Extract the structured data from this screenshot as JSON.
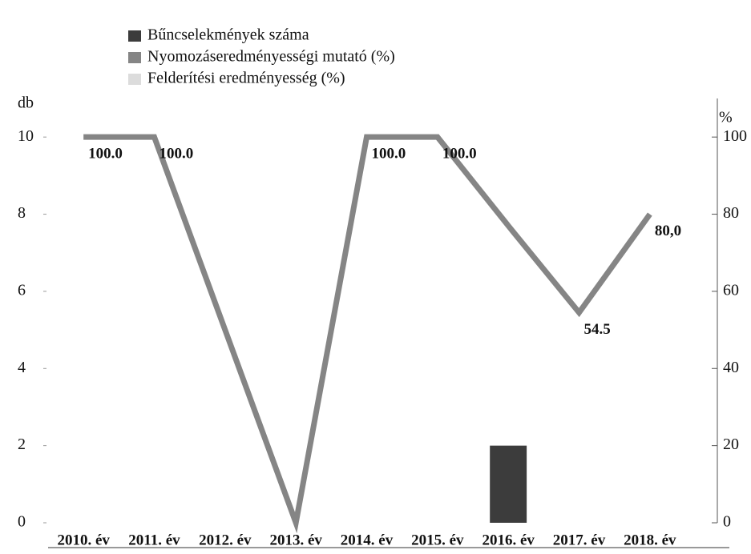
{
  "chart_data": {
    "type": "bar-line",
    "categories": [
      "2010. év",
      "2011. év",
      "2012. év",
      "2013. év",
      "2014. év",
      "2015. év",
      "2016. év",
      "2017. év",
      "2018. év"
    ],
    "y_label": "db",
    "y2_label": "%",
    "ylim": [
      0,
      11
    ],
    "yticks": [
      0,
      2,
      4,
      6,
      8,
      10
    ],
    "y2lim": [
      0,
      110
    ],
    "y2ticks": [
      0,
      20,
      40,
      60,
      80,
      100
    ],
    "legend": "top-left",
    "series": [
      {
        "name": "Bűncselekmények száma",
        "type": "bar",
        "color": "#3c3c3c",
        "values": [
          0,
          0,
          0,
          0,
          0,
          0,
          2,
          0,
          0
        ]
      },
      {
        "name": "Nyomozáseredményességi mutató (%)",
        "type": "line",
        "axis": "y2",
        "color": "#858585",
        "values": [
          100,
          100,
          50,
          0,
          100,
          100,
          77,
          54.5,
          80
        ],
        "value_labels": [
          "100.0",
          "100.0",
          null,
          null,
          "100.0",
          "100.0",
          null,
          "54.5",
          "80,0"
        ]
      },
      {
        "name": "Felderítési eredményesség (%)",
        "type": "line",
        "axis": "y2",
        "color": "#dcdcdc",
        "values": [
          null,
          null,
          null,
          null,
          null,
          null,
          null,
          null,
          null
        ]
      }
    ]
  }
}
